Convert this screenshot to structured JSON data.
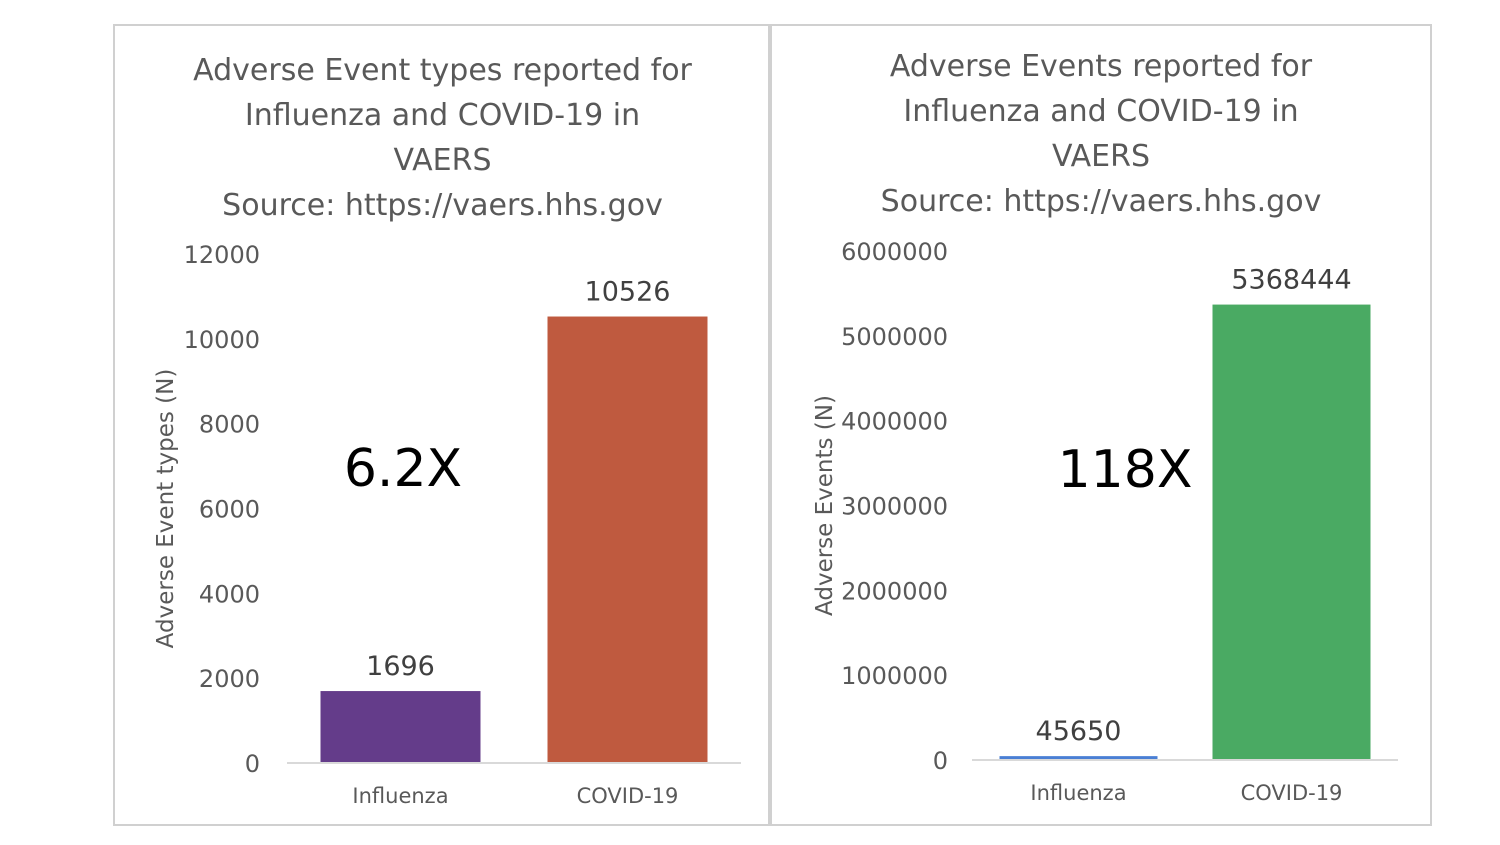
{
  "chart_data": [
    {
      "type": "bar",
      "title_lines": [
        "Adverse Event types reported for",
        "Influenza and COVID-19 in",
        "VAERS",
        "Source: https://vaers.hhs.gov"
      ],
      "xlabel": "",
      "ylabel": "Adverse Event types (N)",
      "categories": [
        "Influenza",
        "COVID-19"
      ],
      "values": [
        1696,
        10526
      ],
      "data_labels": [
        "1696",
        "10526"
      ],
      "bar_colors": [
        "#643c8a",
        "#bf5a3f"
      ],
      "ylim": [
        0,
        12000
      ],
      "yticks": [
        0,
        2000,
        4000,
        6000,
        8000,
        10000,
        12000
      ],
      "ytick_labels": [
        "0",
        "2000",
        "4000",
        "6000",
        "8000",
        "10000",
        "12000"
      ],
      "grid": false,
      "annotation": "6.2X"
    },
    {
      "type": "bar",
      "title_lines": [
        "Adverse Events reported for",
        "Influenza and COVID-19 in",
        "VAERS",
        "Source: https://vaers.hhs.gov"
      ],
      "xlabel": "",
      "ylabel": "Adverse Events (N)",
      "categories": [
        "Influenza",
        "COVID-19"
      ],
      "values": [
        45650,
        5368444
      ],
      "data_labels": [
        "45650",
        "5368444"
      ],
      "bar_colors": [
        "#4a7fd4",
        "#4aaa63"
      ],
      "ylim": [
        0,
        6000000
      ],
      "yticks": [
        0,
        1000000,
        2000000,
        3000000,
        4000000,
        5000000,
        6000000
      ],
      "ytick_labels": [
        "0",
        "1000000",
        "2000000",
        "3000000",
        "4000000",
        "5000000",
        "6000000"
      ],
      "grid": false,
      "annotation": "118X"
    }
  ]
}
